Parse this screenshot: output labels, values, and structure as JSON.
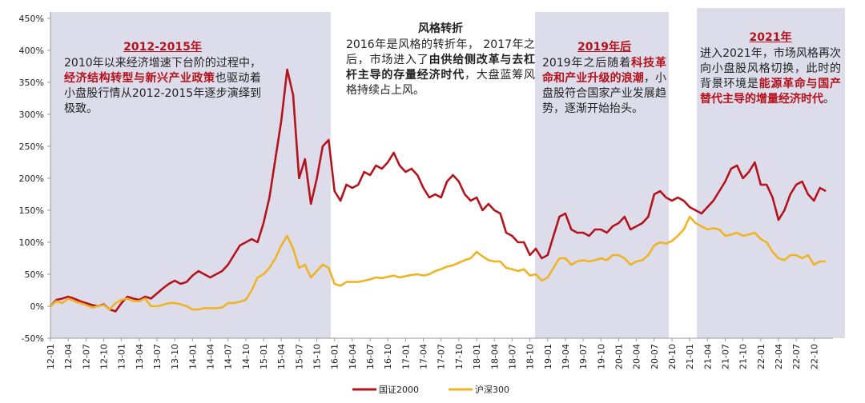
{
  "chart_data": {
    "type": "line",
    "categories": [
      "12-01",
      null,
      null,
      "12-04",
      null,
      null,
      "12-07",
      null,
      null,
      "12-10",
      null,
      null,
      "13-01",
      null,
      null,
      "13-04",
      null,
      null,
      "13-07",
      null,
      null,
      "13-10",
      null,
      null,
      "14-01",
      null,
      null,
      "14-04",
      null,
      null,
      "14-07",
      null,
      null,
      "14-10",
      null,
      null,
      "15-01",
      null,
      null,
      "15-04",
      null,
      null,
      "15-07",
      null,
      null,
      "15-10",
      null,
      null,
      "16-01",
      null,
      null,
      "16-04",
      null,
      null,
      "16-07",
      null,
      null,
      "16-10",
      null,
      null,
      "17-01",
      null,
      null,
      "17-04",
      null,
      null,
      "17-07",
      null,
      null,
      "17-10",
      null,
      null,
      "18-01",
      null,
      null,
      "18-04",
      null,
      null,
      "18-07",
      null,
      null,
      "18-10",
      null,
      null,
      "19-01",
      null,
      null,
      "19-04",
      null,
      null,
      "19-07",
      null,
      null,
      "19-10",
      null,
      null,
      "20-01",
      null,
      null,
      "20-04",
      null,
      null,
      "20-07",
      null,
      null,
      "20-10",
      null,
      null,
      "21-01",
      null,
      null,
      "21-04",
      null,
      null,
      "21-07",
      null,
      null,
      "21-10",
      null,
      null,
      "22-01",
      null,
      null,
      "22-04",
      null,
      null,
      "22-07",
      null,
      null,
      "22-10",
      null,
      null
    ],
    "series": [
      {
        "name": "国证2000",
        "color": "#b5121b",
        "values": [
          0,
          10,
          12,
          15,
          12,
          8,
          5,
          2,
          0,
          3,
          -5,
          -8,
          5,
          15,
          12,
          10,
          15,
          12,
          20,
          28,
          35,
          40,
          35,
          38,
          48,
          55,
          50,
          45,
          50,
          55,
          65,
          80,
          95,
          100,
          105,
          100,
          130,
          170,
          230,
          290,
          370,
          330,
          200,
          230,
          160,
          200,
          250,
          260,
          180,
          165,
          190,
          185,
          190,
          210,
          205,
          220,
          215,
          225,
          240,
          220,
          210,
          215,
          205,
          185,
          170,
          175,
          170,
          195,
          205,
          195,
          175,
          165,
          170,
          150,
          160,
          150,
          145,
          115,
          110,
          100,
          100,
          80,
          90,
          75,
          80,
          110,
          140,
          145,
          120,
          115,
          115,
          110,
          120,
          120,
          115,
          125,
          130,
          140,
          120,
          125,
          130,
          140,
          175,
          180,
          170,
          165,
          170,
          165,
          155,
          150,
          145,
          155,
          165,
          180,
          195,
          215,
          220,
          200,
          210,
          225,
          190,
          190,
          170,
          135,
          150,
          175,
          190,
          195,
          175,
          165,
          185,
          180
        ]
      },
      {
        "name": "沪深300",
        "color": "#f0b323",
        "values": [
          0,
          8,
          5,
          12,
          8,
          5,
          2,
          -2,
          0,
          2,
          -5,
          5,
          10,
          12,
          8,
          8,
          12,
          0,
          0,
          2,
          5,
          5,
          3,
          0,
          -5,
          -5,
          -3,
          -3,
          -3,
          -2,
          5,
          5,
          7,
          10,
          25,
          45,
          50,
          60,
          75,
          95,
          110,
          90,
          60,
          65,
          45,
          55,
          65,
          60,
          35,
          32,
          38,
          38,
          38,
          40,
          42,
          45,
          44,
          46,
          48,
          45,
          47,
          49,
          50,
          48,
          50,
          55,
          58,
          62,
          64,
          68,
          72,
          75,
          85,
          78,
          72,
          70,
          70,
          60,
          58,
          55,
          58,
          48,
          50,
          40,
          45,
          60,
          75,
          75,
          65,
          70,
          72,
          70,
          72,
          75,
          72,
          80,
          80,
          75,
          65,
          70,
          72,
          80,
          95,
          100,
          98,
          102,
          110,
          120,
          140,
          130,
          125,
          120,
          122,
          120,
          110,
          112,
          115,
          110,
          112,
          115,
          105,
          100,
          85,
          75,
          72,
          80,
          80,
          75,
          80,
          65,
          70,
          70
        ]
      }
    ],
    "ylim": [
      -50,
      450
    ],
    "yticks": [
      {
        "value": -50,
        "label": "-50%"
      },
      {
        "value": 0,
        "label": "0%"
      },
      {
        "value": 50,
        "label": "50%"
      },
      {
        "value": 100,
        "label": "100%"
      },
      {
        "value": 150,
        "label": "150%"
      },
      {
        "value": 200,
        "label": "200%"
      },
      {
        "value": 250,
        "label": "250%"
      },
      {
        "value": 300,
        "label": "300%"
      },
      {
        "value": 350,
        "label": "350%"
      },
      {
        "value": 400,
        "label": "400%"
      },
      {
        "value": 450,
        "label": "450%"
      }
    ],
    "legend": "bottom",
    "annotations": [
      {
        "title": "2012-2015年",
        "color": "#b5121b",
        "body": [
          {
            "text": "2010年以来经济增速下台阶的过程中，"
          },
          {
            "text": "经济结构转型与新兴产业政策",
            "emphasis": true
          },
          {
            "text": "也驱动着小盘股行情从2012-2015年逐步演绎到极致。"
          }
        ]
      },
      {
        "title": "风格转折",
        "color": "#222222",
        "body": [
          {
            "text": "2016年是风格的转折年， 2017年之后，市场进入了"
          },
          {
            "text": "由供给侧改革与去杠杆主导的存量经济时代",
            "emphasis": true
          },
          {
            "text": "，大盘蓝筹风格持续占上风。"
          }
        ]
      },
      {
        "title": "2019年后",
        "color": "#b5121b",
        "body": [
          {
            "text": "2019年之后随着"
          },
          {
            "text": "科技革命和产业升级的浪潮",
            "emphasis": true
          },
          {
            "text": "，小盘股符合国家产业发展趋势，逐渐开始抬头。"
          }
        ]
      },
      {
        "title": "2021年",
        "color": "#b5121b",
        "body": [
          {
            "text": "进入2021年，市场风格再次向小盘股风格切换，此时的背景环境是"
          },
          {
            "text": "能源革命与国产替代主导的增量经济时代",
            "emphasis": true
          },
          {
            "text": "。"
          }
        ]
      }
    ]
  }
}
